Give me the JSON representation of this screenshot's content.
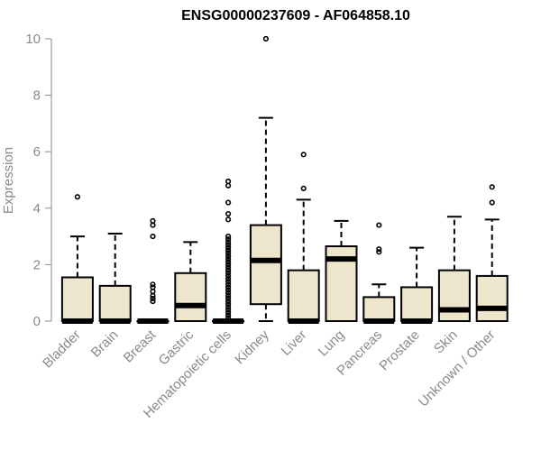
{
  "chart_data": {
    "type": "boxplot",
    "title": "ENSG00000237609 - AF064858.10",
    "xlabel": "",
    "ylabel": "Expression",
    "ylim": [
      0,
      10
    ],
    "yticks": [
      0,
      2,
      4,
      6,
      8,
      10
    ],
    "grid": false,
    "colors": {
      "box_fill": "#ede6cc",
      "box_stroke": "#000000",
      "axis": "#8a8a8a",
      "title": "#000000"
    },
    "categories": [
      "Bladder",
      "Brain",
      "Breast",
      "Gastric",
      "Hematopoietic cells",
      "Kidney",
      "Liver",
      "Lung",
      "Pancreas",
      "Prostate",
      "Skin",
      "Unknown / Other"
    ],
    "boxes": [
      {
        "category": "Bladder",
        "min": 0,
        "q1": 0,
        "median": 0,
        "q3": 1.55,
        "max": 3.0,
        "outliers": [
          4.4
        ]
      },
      {
        "category": "Brain",
        "min": 0,
        "q1": 0,
        "median": 0,
        "q3": 1.25,
        "max": 3.1,
        "outliers": []
      },
      {
        "category": "Breast",
        "min": 0,
        "q1": 0,
        "median": 0,
        "q3": 0,
        "max": 0,
        "outliers": [
          0.7,
          0.8,
          0.9,
          1.05,
          1.2,
          1.3,
          3.0,
          3.4,
          3.55
        ]
      },
      {
        "category": "Gastric",
        "min": 0,
        "q1": 0,
        "median": 0.55,
        "q3": 1.7,
        "max": 2.8,
        "outliers": []
      },
      {
        "category": "Hematopoietic cells",
        "min": 0,
        "q1": 0,
        "median": 0,
        "q3": 0,
        "max": 0,
        "outliers": [
          0.1,
          0.2,
          0.3,
          0.4,
          0.5,
          0.6,
          0.7,
          0.8,
          0.9,
          1.0,
          1.1,
          1.2,
          1.3,
          1.4,
          1.5,
          1.6,
          1.7,
          1.8,
          1.9,
          2.0,
          2.1,
          2.2,
          2.3,
          2.4,
          2.5,
          2.6,
          2.7,
          2.8,
          2.9,
          3.0,
          3.6,
          3.8,
          4.2,
          4.8,
          4.95
        ]
      },
      {
        "category": "Kidney",
        "min": 0,
        "q1": 0.6,
        "median": 2.15,
        "q3": 3.4,
        "max": 7.2,
        "outliers": [
          10.0
        ]
      },
      {
        "category": "Liver",
        "min": 0,
        "q1": 0,
        "median": 0,
        "q3": 1.8,
        "max": 4.3,
        "outliers": [
          4.7,
          5.9
        ]
      },
      {
        "category": "Lung",
        "min": 0,
        "q1": 0,
        "median": 2.2,
        "q3": 2.65,
        "max": 3.55,
        "outliers": []
      },
      {
        "category": "Pancreas",
        "min": 0,
        "q1": 0,
        "median": 0,
        "q3": 0.85,
        "max": 1.3,
        "outliers": [
          2.45,
          2.55,
          3.4
        ]
      },
      {
        "category": "Prostate",
        "min": 0,
        "q1": 0,
        "median": 0,
        "q3": 1.2,
        "max": 2.6,
        "outliers": []
      },
      {
        "category": "Skin",
        "min": 0,
        "q1": 0,
        "median": 0.4,
        "q3": 1.8,
        "max": 3.7,
        "outliers": []
      },
      {
        "category": "Unknown / Other",
        "min": 0,
        "q1": 0,
        "median": 0.45,
        "q3": 1.6,
        "max": 3.6,
        "outliers": [
          4.2,
          4.75
        ]
      }
    ]
  }
}
